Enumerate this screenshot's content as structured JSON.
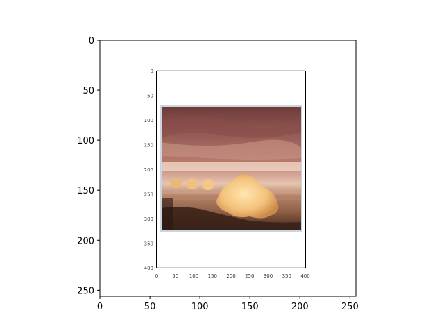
{
  "chart_data": {
    "type": "image",
    "title": "",
    "xlabel": "",
    "ylabel": "",
    "xlim": [
      0,
      256
    ],
    "ylim": [
      256,
      0
    ],
    "y_inverted": true,
    "xticks": [
      0,
      50,
      100,
      150,
      200,
      250
    ],
    "yticks": [
      0,
      50,
      100,
      150,
      200,
      250
    ],
    "grid": false,
    "embedded_image": {
      "description_kind": "nested plot of a photograph",
      "xticks": [
        0,
        50,
        100,
        150,
        200,
        250,
        300,
        350,
        400
      ],
      "yticks": [
        0,
        50,
        100,
        150,
        200,
        250,
        300,
        350,
        400
      ],
      "y_inverted": true,
      "photo_colors": {
        "sky_top": "#6e3b3a",
        "sky_mid": "#b97a6e",
        "horizon": "#e7c4b0",
        "sea": "#9a6a4f",
        "ice": "#f4c27a",
        "foreground": "#3a2218",
        "frame": "#c9d6df"
      }
    }
  }
}
